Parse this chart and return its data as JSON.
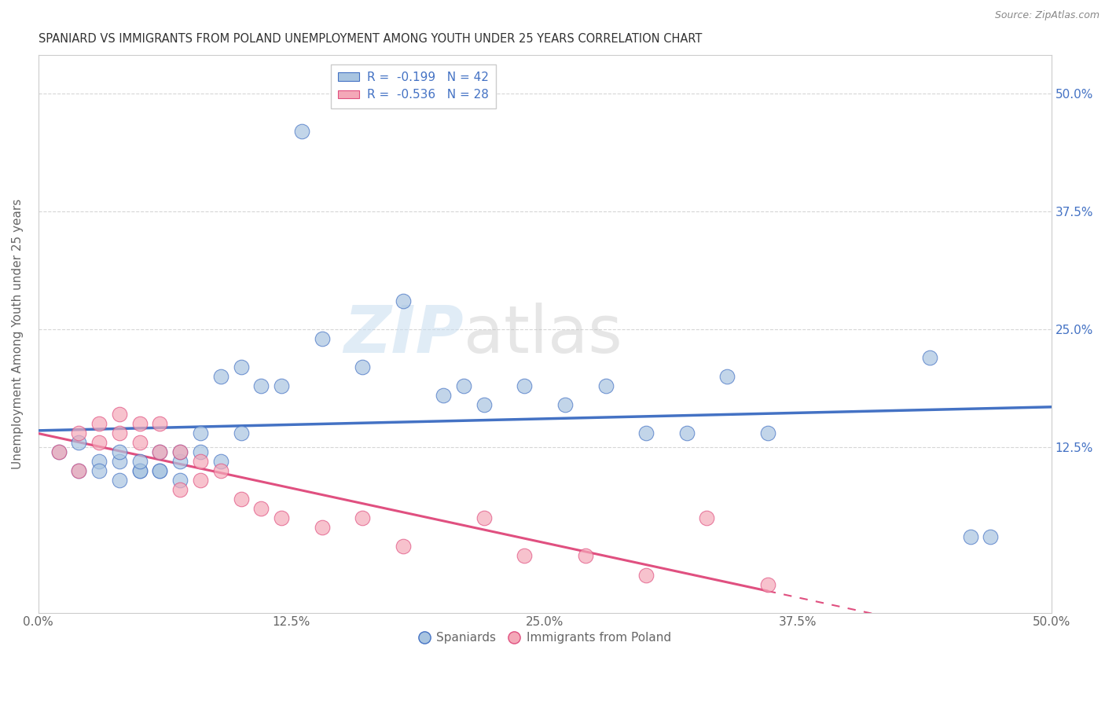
{
  "title": "SPANIARD VS IMMIGRANTS FROM POLAND UNEMPLOYMENT AMONG YOUTH UNDER 25 YEARS CORRELATION CHART",
  "source": "Source: ZipAtlas.com",
  "ylabel": "Unemployment Among Youth under 25 years",
  "xlim": [
    0,
    0.5
  ],
  "ylim": [
    -0.05,
    0.54
  ],
  "xtick_labels": [
    "0.0%",
    "12.5%",
    "25.0%",
    "37.5%",
    "50.0%"
  ],
  "xtick_vals": [
    0.0,
    0.125,
    0.25,
    0.375,
    0.5
  ],
  "ytick_vals": [
    0.125,
    0.25,
    0.375,
    0.5
  ],
  "right_ytick_labels": [
    "12.5%",
    "25.0%",
    "37.5%",
    "50.0%"
  ],
  "right_ytick_vals": [
    0.125,
    0.25,
    0.375,
    0.5
  ],
  "spaniards_color": "#a8c4e0",
  "poland_color": "#f4a8b8",
  "trendline_spain_color": "#4472c4",
  "trendline_poland_color": "#e05080",
  "R_spain": -0.199,
  "N_spain": 42,
  "R_poland": -0.536,
  "N_poland": 28,
  "legend_labels": [
    "Spaniards",
    "Immigrants from Poland"
  ],
  "watermark_zip": "ZIP",
  "watermark_atlas": "atlas",
  "background_color": "#ffffff",
  "grid_color": "#cccccc",
  "title_color": "#333333",
  "axis_label_color": "#666666",
  "right_axis_color": "#4472c4",
  "spaniards_x": [
    0.01,
    0.02,
    0.02,
    0.03,
    0.03,
    0.04,
    0.04,
    0.04,
    0.05,
    0.05,
    0.05,
    0.06,
    0.06,
    0.06,
    0.07,
    0.07,
    0.07,
    0.08,
    0.08,
    0.09,
    0.09,
    0.1,
    0.1,
    0.11,
    0.12,
    0.13,
    0.14,
    0.16,
    0.18,
    0.2,
    0.21,
    0.22,
    0.24,
    0.26,
    0.28,
    0.3,
    0.32,
    0.34,
    0.36,
    0.44,
    0.46,
    0.47
  ],
  "spaniards_y": [
    0.12,
    0.1,
    0.13,
    0.11,
    0.1,
    0.09,
    0.11,
    0.12,
    0.1,
    0.1,
    0.11,
    0.1,
    0.1,
    0.12,
    0.09,
    0.11,
    0.12,
    0.12,
    0.14,
    0.11,
    0.2,
    0.14,
    0.21,
    0.19,
    0.19,
    0.46,
    0.24,
    0.21,
    0.28,
    0.18,
    0.19,
    0.17,
    0.19,
    0.17,
    0.19,
    0.14,
    0.14,
    0.2,
    0.14,
    0.22,
    0.03,
    0.03
  ],
  "poland_x": [
    0.01,
    0.02,
    0.02,
    0.03,
    0.03,
    0.04,
    0.04,
    0.05,
    0.05,
    0.06,
    0.06,
    0.07,
    0.07,
    0.08,
    0.08,
    0.09,
    0.1,
    0.11,
    0.12,
    0.14,
    0.16,
    0.18,
    0.22,
    0.24,
    0.27,
    0.3,
    0.33,
    0.36
  ],
  "poland_y": [
    0.12,
    0.14,
    0.1,
    0.15,
    0.13,
    0.14,
    0.16,
    0.13,
    0.15,
    0.12,
    0.15,
    0.12,
    0.08,
    0.09,
    0.11,
    0.1,
    0.07,
    0.06,
    0.05,
    0.04,
    0.05,
    0.02,
    0.05,
    0.01,
    0.01,
    -0.01,
    0.05,
    -0.02
  ]
}
